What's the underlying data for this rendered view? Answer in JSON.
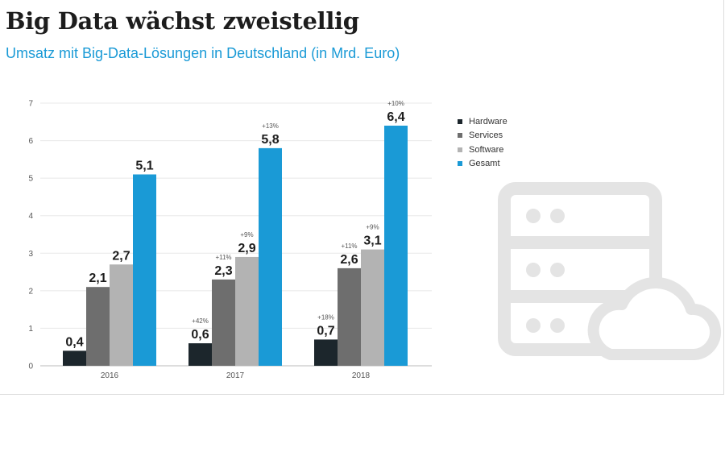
{
  "title": "Big Data wächst zweistellig",
  "subtitle": "Umsatz mit Big-Data-Lösungen in Deutschland (in Mrd. Euro)",
  "colors": {
    "accent": "#1a9ad6",
    "icon": "#e4e4e4"
  },
  "chart_data": {
    "type": "bar",
    "categories": [
      "2016",
      "2017",
      "2018"
    ],
    "ylim": [
      0,
      7
    ],
    "yticks": [
      "0",
      "1",
      "2",
      "3",
      "4",
      "5",
      "6",
      "7"
    ],
    "grid": true,
    "legend_position": "right",
    "series": [
      {
        "name": "Hardware",
        "color": "#1c262c",
        "values": [
          0.4,
          0.6,
          0.7
        ],
        "labels": [
          "0,4",
          "0,6",
          "0,7"
        ],
        "growth": [
          "",
          "+42%",
          "+18%"
        ]
      },
      {
        "name": "Services",
        "color": "#6e6e6e",
        "values": [
          2.1,
          2.3,
          2.6
        ],
        "labels": [
          "2,1",
          "2,3",
          "2,6"
        ],
        "growth": [
          "",
          "+11%",
          "+11%"
        ]
      },
      {
        "name": "Software",
        "color": "#b3b3b3",
        "values": [
          2.7,
          2.9,
          3.1
        ],
        "labels": [
          "2,7",
          "2,9",
          "3,1"
        ],
        "growth": [
          "",
          "+9%",
          "+9%"
        ]
      },
      {
        "name": "Gesamt",
        "color": "#1a9ad6",
        "values": [
          5.1,
          5.8,
          6.4
        ],
        "labels": [
          "5,1",
          "5,8",
          "6,4"
        ],
        "growth": [
          "",
          "+13%",
          "+10%"
        ]
      }
    ]
  },
  "decorative_icon": "server-cloud-icon"
}
